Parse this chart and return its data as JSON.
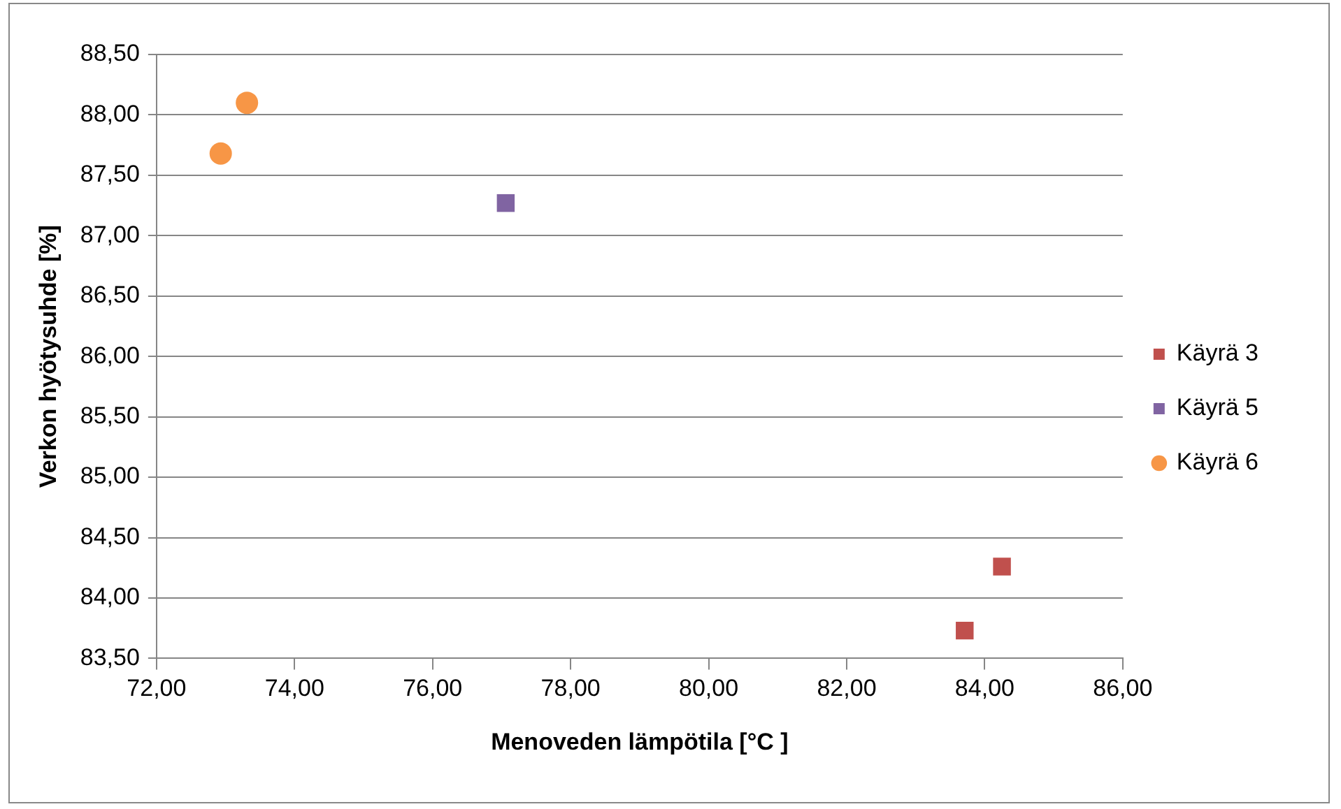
{
  "chart_data": {
    "type": "scatter",
    "xlabel": "Menoveden lämpötila [°C ]",
    "ylabel": "Verkon hyötysuhde [%]",
    "series": [
      {
        "name": "Käyrä 3",
        "color": "#c0504d",
        "marker": "square",
        "x": [
          84.25,
          83.71
        ],
        "values": [
          84.26,
          83.73
        ]
      },
      {
        "name": "Käyrä 5",
        "color": "#8064a2",
        "marker": "square",
        "x": [
          77.06
        ],
        "values": [
          87.27
        ]
      },
      {
        "name": "Käyrä 6",
        "color": "#f79646",
        "marker": "circle",
        "x": [
          73.31,
          72.93
        ],
        "values": [
          88.1,
          87.68
        ]
      }
    ],
    "xlim": [
      72,
      86
    ],
    "xticks": [
      {
        "value": 72,
        "label": "72,00"
      },
      {
        "value": 74,
        "label": "74,00"
      },
      {
        "value": 76,
        "label": "76,00"
      },
      {
        "value": 78,
        "label": "78,00"
      },
      {
        "value": 80,
        "label": "80,00"
      },
      {
        "value": 82,
        "label": "82,00"
      },
      {
        "value": 84,
        "label": "84,00"
      },
      {
        "value": 86,
        "label": "86,00"
      }
    ],
    "ylim": [
      83.5,
      88.5
    ],
    "yticks": [
      {
        "value": 83.5,
        "label": "83,50"
      },
      {
        "value": 84,
        "label": "84,00"
      },
      {
        "value": 84.5,
        "label": "84,50"
      },
      {
        "value": 85,
        "label": "85,00"
      },
      {
        "value": 85.5,
        "label": "85,50"
      },
      {
        "value": 86,
        "label": "86,00"
      },
      {
        "value": 86.5,
        "label": "86,50"
      },
      {
        "value": 87,
        "label": "87,00"
      },
      {
        "value": 87.5,
        "label": "87,50"
      },
      {
        "value": 88,
        "label": "88,00"
      },
      {
        "value": 88.5,
        "label": "88,50"
      }
    ],
    "grid": "y",
    "legend": "right"
  }
}
